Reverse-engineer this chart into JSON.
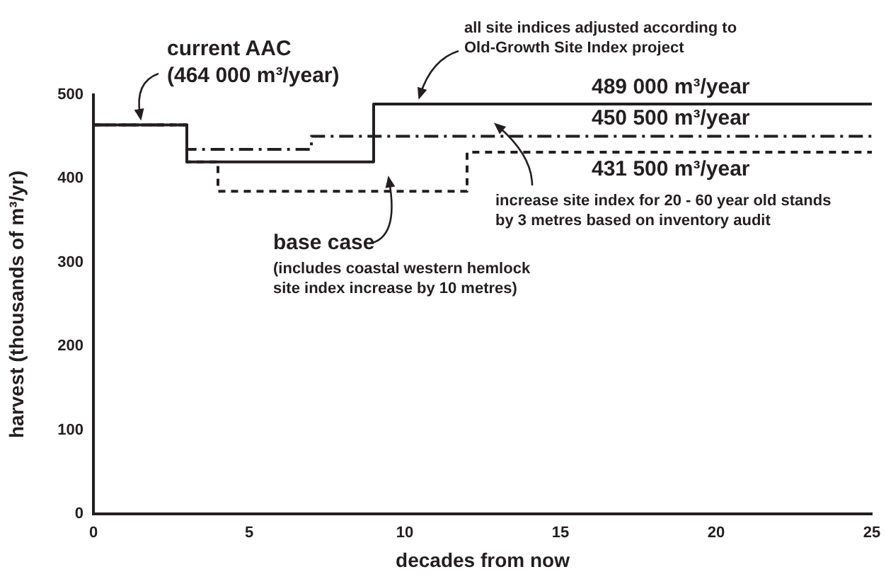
{
  "chart_data": {
    "type": "step",
    "xlabel": "decades from now",
    "ylabel": "harvest (thousands of m³/yr)",
    "xlim": [
      0,
      25
    ],
    "xticks": [
      0,
      5,
      10,
      15,
      20,
      25
    ],
    "ylim": [
      0,
      500
    ],
    "yticks": [
      0,
      100,
      200,
      300,
      400,
      500
    ],
    "grid": false,
    "legend": false,
    "marker": "none",
    "series": [
      {
        "color": "#231f20",
        "line_style": "solid",
        "x": [
          0,
          3,
          9,
          25
        ],
        "values": [
          464,
          420,
          489,
          489
        ]
      },
      {
        "color": "#231f20",
        "line_style": "dashdot",
        "x": [
          0,
          3,
          7,
          25
        ],
        "values": [
          464,
          435,
          450.5,
          450.5
        ]
      },
      {
        "color": "#231f20",
        "line_style": "dashed",
        "x": [
          0,
          3,
          4,
          12,
          25
        ],
        "values": [
          464,
          420,
          385,
          431.5,
          431.5
        ]
      }
    ],
    "annotations": [
      {
        "text": "current AAC\n(464 000 m³/year)",
        "x": 1.5,
        "y": 464
      },
      {
        "text": "all site indices adjusted according to\nOld-Growth Site Index project",
        "x": 10.5,
        "y": 489
      },
      {
        "text": "489 000 m³/year",
        "x": 16,
        "y": 489
      },
      {
        "text": "450 500 m³/year",
        "x": 16,
        "y": 450.5
      },
      {
        "text": "431 500 m³/year",
        "x": 16,
        "y": 431.5
      },
      {
        "text": "increase site index for 20 - 60 year old stands\nby 3 metres based on inventory audit",
        "x": 13,
        "y": 450.5
      },
      {
        "text": "base case",
        "x": 9.5,
        "y": 385
      },
      "(includes coastal western hemlock\nsite index increase by 10 metres)"
    ]
  }
}
